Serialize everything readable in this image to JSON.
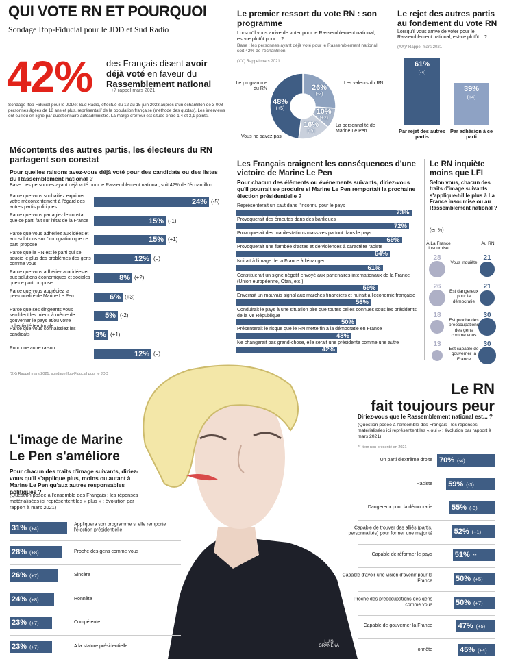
{
  "header": {
    "title": "QUI VOTE RN ET POURQUOI",
    "subtitle": "Sondage Ifop-Fiducial pour le JDD et Sud Radio",
    "stat": {
      "value": 42,
      "value_label": "42%",
      "text_parts": [
        "des Français disent ",
        "avoir déjà voté",
        " en faveur du ",
        "Rassemblement national"
      ],
      "evolution": "+7 rappel mars 2021"
    },
    "method": "Sondage Ifop-Fiducial pour le JDDet Sud Radio, effectué du 12 au 15 juin 2023 auprès d'un échantillon de 3 008 personnes âgées de 18 ans et plus, représentatif de la population française (méthode des quotas). Les interviews ont eu lieu en ligne par questionnaire autoadministré. La marge d'erreur est située entre 1,4 et 3,1 points."
  },
  "programme": {
    "type": "donut",
    "title": "Le premier ressort du vote RN : son programme",
    "question": "Lorsqu'il vous arrive de voter pour le Rassemblement national, est-ce plutôt pour... ?",
    "base": "Base : les personnes ayant déjà voté pour le Rassemblement national, soit 42% de l'échantillon.",
    "note": "(XX) Rappel mars 2021",
    "slices": [
      {
        "name": "Les valeurs du RN",
        "value": 26,
        "value_label": "26%",
        "evolution": "(-2)",
        "color": "#8ea2bf"
      },
      {
        "name": "La personnalité de Marine Le Pen",
        "value": 10,
        "value_label": "10%",
        "evolution": "(+2)",
        "color": "#a9b6ca"
      },
      {
        "name": "Vous ne savez pas",
        "value": 16,
        "value_label": "16%",
        "evolution": "(-5)",
        "color": "#c9d0dc"
      },
      {
        "name": "Le programme du RN",
        "value": 48,
        "value_label": "48%",
        "evolution": "(+5)",
        "color": "#3f5d84"
      }
    ]
  },
  "rejet": {
    "type": "bar",
    "title": "Le rejet des autres partis au fondement du vote RN",
    "question": "Lorsqu'il vous arrive de voter pour le Rassemblement national, est-ce plutôt... ?",
    "note": "(XX)* Rappel mars 2021",
    "bars": [
      {
        "name": "Par rejet des autres partis",
        "value": 61,
        "value_label": "61%",
        "evolution": "(-4)",
        "color": "#3f5d84"
      },
      {
        "name": "Par adhésion à ce parti",
        "value": 39,
        "value_label": "39%",
        "evolution": "(+4)",
        "color": "#8ea2c4"
      }
    ]
  },
  "mecontents": {
    "type": "hbar",
    "title": "Mécontents des autres partis, les électeurs du RN partagent son constat",
    "question": "Pour quelles raisons avez-vous déjà voté pour des candidats ou des listes du Rassemblement national ?",
    "base": "Base : les personnes ayant déjà voté pour le Rassemblement national, soit 42% de l'échantillon.",
    "color": "#3f5d84",
    "items": [
      {
        "label": "Parce que vous souhaitiez exprimer votre mécontentement à l'égard des autres partis politiques",
        "value": 24,
        "value_label": "24%",
        "evolution": "(-5)"
      },
      {
        "label": "Parce que vous partagiez le constat que ce parti fait sur l'état de la France",
        "value": 15,
        "value_label": "15%",
        "evolution": "(-1)"
      },
      {
        "label": "Parce que vous adhériez aux idées et aux solutions sur l'immigration que ce parti propose",
        "value": 15,
        "value_label": "15%",
        "evolution": "(+1)"
      },
      {
        "label": "Parce que le RN est le parti qui se soucie le plus des problèmes des gens comme vous",
        "value": 12,
        "value_label": "12%",
        "evolution": "(=)"
      },
      {
        "label": "Parce que vous adhériez aux idées et aux solutions économiques et sociales que ce parti propose",
        "value": 8,
        "value_label": "8%",
        "evolution": "(+2)"
      },
      {
        "label": "Parce que vous appréciez la personnalité de Marine Le Pen",
        "value": 6,
        "value_label": "6%",
        "evolution": "(+3)"
      },
      {
        "label": "Parce que ses dirigeants vous semblent les mieux à même de gouverner le pays et/ou votre collectivité territoriale",
        "value": 5,
        "value_label": "5%",
        "evolution": "(-2)"
      },
      {
        "label": "Parce que vous connaissiez les candidats",
        "value": 3,
        "value_label": "3%",
        "evolution": "(+1)"
      },
      {
        "label": "Pour une autre raison",
        "value": 12,
        "value_label": "12%",
        "evolution": "(=)"
      }
    ],
    "note": "(XX) Rappel mars 2021. sondage Ifop-Fiducial pour le JDD"
  },
  "craintes": {
    "type": "hbar",
    "title": "Les Français craignent les conséquences d'une victoire de Marine Le Pen",
    "question": "Pour chacun des éléments ou événements suivants, diriez-vous qu'il pourrait se produire si Marine Le Pen remportait la prochaine élection présidentielle ?",
    "color": "#3f5d84",
    "items": [
      {
        "label": "Représenterait un saut dans l'inconnu pour le pays",
        "value": 73,
        "value_label": "73%"
      },
      {
        "label": "Provoquerait des émeutes dans des banlieues",
        "value": 72,
        "value_label": "72%"
      },
      {
        "label": "Provoquerait des manifestations massives partout dans le pays",
        "value": 69,
        "value_label": "69%"
      },
      {
        "label": "Provoquerait une flambée d'actes et de violences à caractère raciste",
        "value": 64,
        "value_label": "64%"
      },
      {
        "label": "Nuirait à l'image de la France à l'étranger",
        "value": 61,
        "value_label": "61%"
      },
      {
        "label": "Constituerait un signe négatif envoyé aux partenaires internationaux de la France (Union européenne, Otan, etc.)",
        "value": 59,
        "value_label": "59%"
      },
      {
        "label": "Enverrait un mauvais signal aux marchés financiers et nuirait à l'économie française",
        "value": 56,
        "value_label": "56%"
      },
      {
        "label": "Conduirait le pays à une situation pire que toutes celles connues sous les présidents de la Ve République",
        "value": 50,
        "value_label": "50%"
      },
      {
        "label": "Présenterait le risque que le RN mette fin à la démocratie en France",
        "value": 48,
        "value_label": "48%"
      },
      {
        "label": "Ne changerait pas grand-chose, elle serait une présidente comme une autre",
        "value": 42,
        "value_label": "42%"
      }
    ]
  },
  "lfi": {
    "type": "bubble",
    "title": "Le RN inquiète moins que LFI",
    "question": "Selon vous, chacun des traits d'image suivants s'applique-t-il le plus à La France insoumise ou au Rassemblement national ?",
    "unit": "(en %)",
    "headers": [
      "À La France insoumise",
      "Au RN"
    ],
    "colors": [
      "#aeb0c6",
      "#3f5d84"
    ],
    "rows": [
      {
        "label": "Vous inquiète",
        "values": [
          28,
          21
        ]
      },
      {
        "label": "Est dangereux pour la démocratie",
        "values": [
          26,
          21
        ]
      },
      {
        "label": "Est proche des préoccupations des gens comme vous",
        "values": [
          18,
          30
        ]
      },
      {
        "label": "Est capable de gouverner la France",
        "values": [
          13,
          30
        ]
      }
    ]
  },
  "peur": {
    "type": "hbar",
    "title_lines": [
      "Le RN",
      "fait toujours peur"
    ],
    "question": "Diriez-vous que le Rassemblement national est... ?",
    "note": "(Question posée à l'ensemble des Français ; les réponses matérialisées ici représentent les « oui » ; évolution par rapport à mars 2021)",
    "footnote": "** Item non présenté en 2021",
    "color": "#3f5d84",
    "items": [
      {
        "label": "Un parti d'extrême droite",
        "value": 70,
        "value_label": "70%",
        "evolution": "(-4)"
      },
      {
        "label": "Raciste",
        "value": 59,
        "value_label": "59%",
        "evolution": "(-3)"
      },
      {
        "label": "Dangereux pour la démocratie",
        "value": 55,
        "value_label": "55%",
        "evolution": "(-3)"
      },
      {
        "label": "Capable de trouver des alliés (partis, personnalités) pour former une majorité",
        "value": 52,
        "value_label": "52%",
        "evolution": "(+1)"
      },
      {
        "label": "Capable de réformer le pays",
        "value": 51,
        "value_label": "51%",
        "evolution": "**"
      },
      {
        "label": "Capable d'avoir une vision d'avenir pour la France",
        "value": 50,
        "value_label": "50%",
        "evolution": "(+5)"
      },
      {
        "label": "Proche des préoccupations des gens comme vous",
        "value": 50,
        "value_label": "50%",
        "evolution": "(+7)"
      },
      {
        "label": "Capable de gouverner la France",
        "value": 47,
        "value_label": "47%",
        "evolution": "(+5)"
      },
      {
        "label": "Honnête",
        "value": 45,
        "value_label": "45%",
        "evolution": "(+4)"
      }
    ]
  },
  "image": {
    "type": "hbar",
    "title_lines": [
      "L'image de Marine",
      "Le Pen s'améliore"
    ],
    "question": "Pour chacun des traits d'image suivants, diriez-vous qu'il s'applique plus, moins ou autant à Marine Le Pen qu'aux autres responsables politiques ?",
    "note": "(Question posée à l'ensemble des Français ; les réponses matérialisées ici représentent les « plus » ; évolution par rapport à mars 2021)",
    "color": "#3f5d84",
    "items": [
      {
        "label": "Appliquera son programme si elle remporte l'élection présidentielle",
        "value": 31,
        "value_label": "31%",
        "evolution": "(+4)"
      },
      {
        "label": "Proche des gens comme vous",
        "value": 28,
        "value_label": "28%",
        "evolution": "(+8)"
      },
      {
        "label": "Sincère",
        "value": 26,
        "value_label": "26%",
        "evolution": "(+7)"
      },
      {
        "label": "Honnête",
        "value": 24,
        "value_label": "24%",
        "evolution": "(+8)"
      },
      {
        "label": "Compétente",
        "value": 23,
        "value_label": "23%",
        "evolution": "(+7)"
      },
      {
        "label": "A la stature présidentielle",
        "value": 23,
        "value_label": "23%",
        "evolution": "(+7)"
      }
    ]
  },
  "credit": "LUIS GRAÑENA"
}
